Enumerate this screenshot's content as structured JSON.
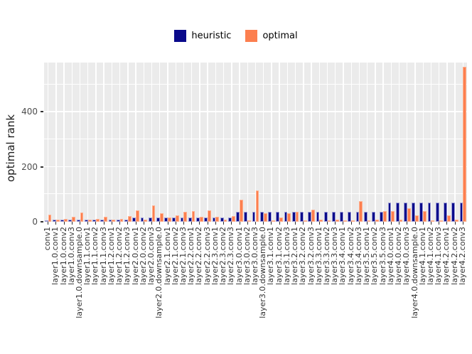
{
  "legend": {
    "items": [
      {
        "label": "heuristic",
        "color": "#0a0a8b"
      },
      {
        "label": "optimal",
        "color": "#fc7f4f"
      }
    ]
  },
  "chart_data": {
    "type": "bar",
    "title": "",
    "xlabel": "",
    "ylabel": "optimal rank",
    "legend_position": "top-center",
    "grid": true,
    "plot_background": "#ebebeb",
    "gridline_color": "#ffffff",
    "ylim": [
      0,
      579
    ],
    "yticks": [
      0,
      200,
      400
    ],
    "yticks_minor": [
      100,
      300,
      500
    ],
    "categories": [
      "conv1",
      "layer1.0.conv1",
      "layer1.0.conv2",
      "layer1.0.conv3",
      "layer1.0.downsample.0",
      "layer1.1.conv1",
      "layer1.1.conv2",
      "layer1.1.conv3",
      "layer1.2.conv1",
      "layer1.2.conv2",
      "layer1.2.conv3",
      "layer2.0.conv1",
      "layer2.0.conv2",
      "layer2.0.conv3",
      "layer2.0.downsample.0",
      "layer2.1.conv1",
      "layer2.1.conv2",
      "layer2.1.conv3",
      "layer2.2.conv1",
      "layer2.2.conv2",
      "layer2.2.conv3",
      "layer2.3.conv1",
      "layer2.3.conv2",
      "layer2.3.conv3",
      "layer3.0.conv1",
      "layer3.0.conv2",
      "layer3.0.conv3",
      "layer3.0.downsample.0",
      "layer3.1.conv1",
      "layer3.1.conv2",
      "layer3.1.conv3",
      "layer3.2.conv1",
      "layer3.2.conv2",
      "layer3.2.conv3",
      "layer3.3.conv1",
      "layer3.3.conv2",
      "layer3.3.conv3",
      "layer3.4.conv1",
      "layer3.4.conv2",
      "layer3.4.conv3",
      "layer3.5.conv1",
      "layer3.5.conv2",
      "layer3.5.conv3",
      "layer4.0.conv1",
      "layer4.0.conv2",
      "layer4.0.conv3",
      "layer4.0.downsample.0",
      "layer4.1.conv1",
      "layer4.1.conv2",
      "layer4.1.conv3",
      "layer4.2.conv1",
      "layer4.2.conv2",
      "layer4.2.conv3"
    ],
    "series": [
      {
        "name": "heuristic",
        "color": "#0a0a8b",
        "values": [
          4,
          8,
          8,
          8,
          8,
          8,
          8,
          8,
          8,
          8,
          8,
          16,
          16,
          16,
          16,
          16,
          16,
          16,
          16,
          16,
          16,
          16,
          16,
          16,
          35,
          35,
          35,
          35,
          35,
          35,
          35,
          35,
          35,
          35,
          35,
          35,
          35,
          35,
          35,
          35,
          35,
          35,
          35,
          69,
          69,
          69,
          69,
          69,
          69,
          69,
          69,
          69,
          69
        ]
      },
      {
        "name": "optimal",
        "color": "#fc7f4f",
        "values": [
          26,
          7,
          10,
          17,
          33,
          7,
          10,
          19,
          8,
          10,
          20,
          42,
          7,
          60,
          31,
          16,
          24,
          36,
          38,
          19,
          42,
          19,
          9,
          22,
          81,
          6,
          113,
          31,
          3,
          16,
          30,
          36,
          4,
          43,
          8,
          4,
          8,
          4,
          4,
          74,
          4,
          8,
          38,
          39,
          8,
          48,
          24,
          40,
          4,
          2,
          24,
          7,
          563
        ]
      }
    ]
  }
}
